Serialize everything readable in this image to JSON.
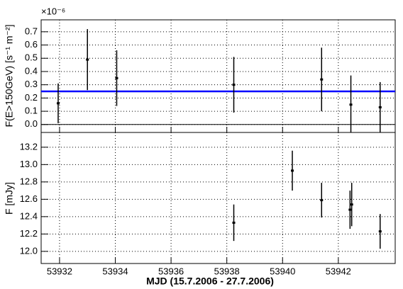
{
  "chart_data": [
    {
      "type": "scatter",
      "y_label": "F(E>150GeV) [s⁻¹ m⁻²]",
      "y_multiplier": "×10⁻⁶",
      "xlim": [
        53931.34,
        53944.04
      ],
      "xticks": [
        53932,
        53934,
        53936,
        53938,
        53940,
        53942
      ],
      "x_tick_labels": false,
      "ylim": [
        -0.06,
        0.79
      ],
      "yticks": [
        {
          "value": 0,
          "label": "0.0"
        },
        0.1,
        0.2,
        0.3,
        0.4,
        0.5,
        0.6,
        0.7
      ],
      "grid": true,
      "reference_line": {
        "value": 0.25,
        "color": "#0000ff"
      },
      "series": [
        {
          "color": "#000000",
          "x": [
            53931.95,
            53933.0,
            53934.05,
            53938.25,
            53941.4,
            53942.45,
            53943.5
          ],
          "values": [
            0.16,
            0.49,
            0.35,
            0.3,
            0.34,
            0.15,
            0.13
          ],
          "errors": [
            0.15,
            0.23,
            0.21,
            0.21,
            0.24,
            0.22,
            0.19
          ]
        }
      ]
    },
    {
      "type": "scatter",
      "x_label": "MJD (15.7.2006 - 27.7.2006)",
      "y_label": "F [mJy]",
      "xlim": [
        53931.34,
        53944.04
      ],
      "xticks": [
        53932,
        53934,
        53936,
        53938,
        53940,
        53942
      ],
      "x_tick_labels": true,
      "ylim": [
        11.86,
        13.37
      ],
      "yticks": [
        {
          "value": 12,
          "label": "12.0"
        },
        12.2,
        12.4,
        12.6,
        12.8,
        {
          "value": 13,
          "label": "13.0"
        },
        13.2
      ],
      "grid": true,
      "series": [
        {
          "color": "#000000",
          "x": [
            53938.25,
            53940.35,
            53941.4,
            53942.42,
            53942.48,
            53943.5
          ],
          "values": [
            12.33,
            12.93,
            12.59,
            12.48,
            12.54,
            12.23
          ],
          "errors": [
            0.21,
            0.23,
            0.2,
            0.22,
            0.25,
            0.2
          ]
        }
      ]
    }
  ]
}
